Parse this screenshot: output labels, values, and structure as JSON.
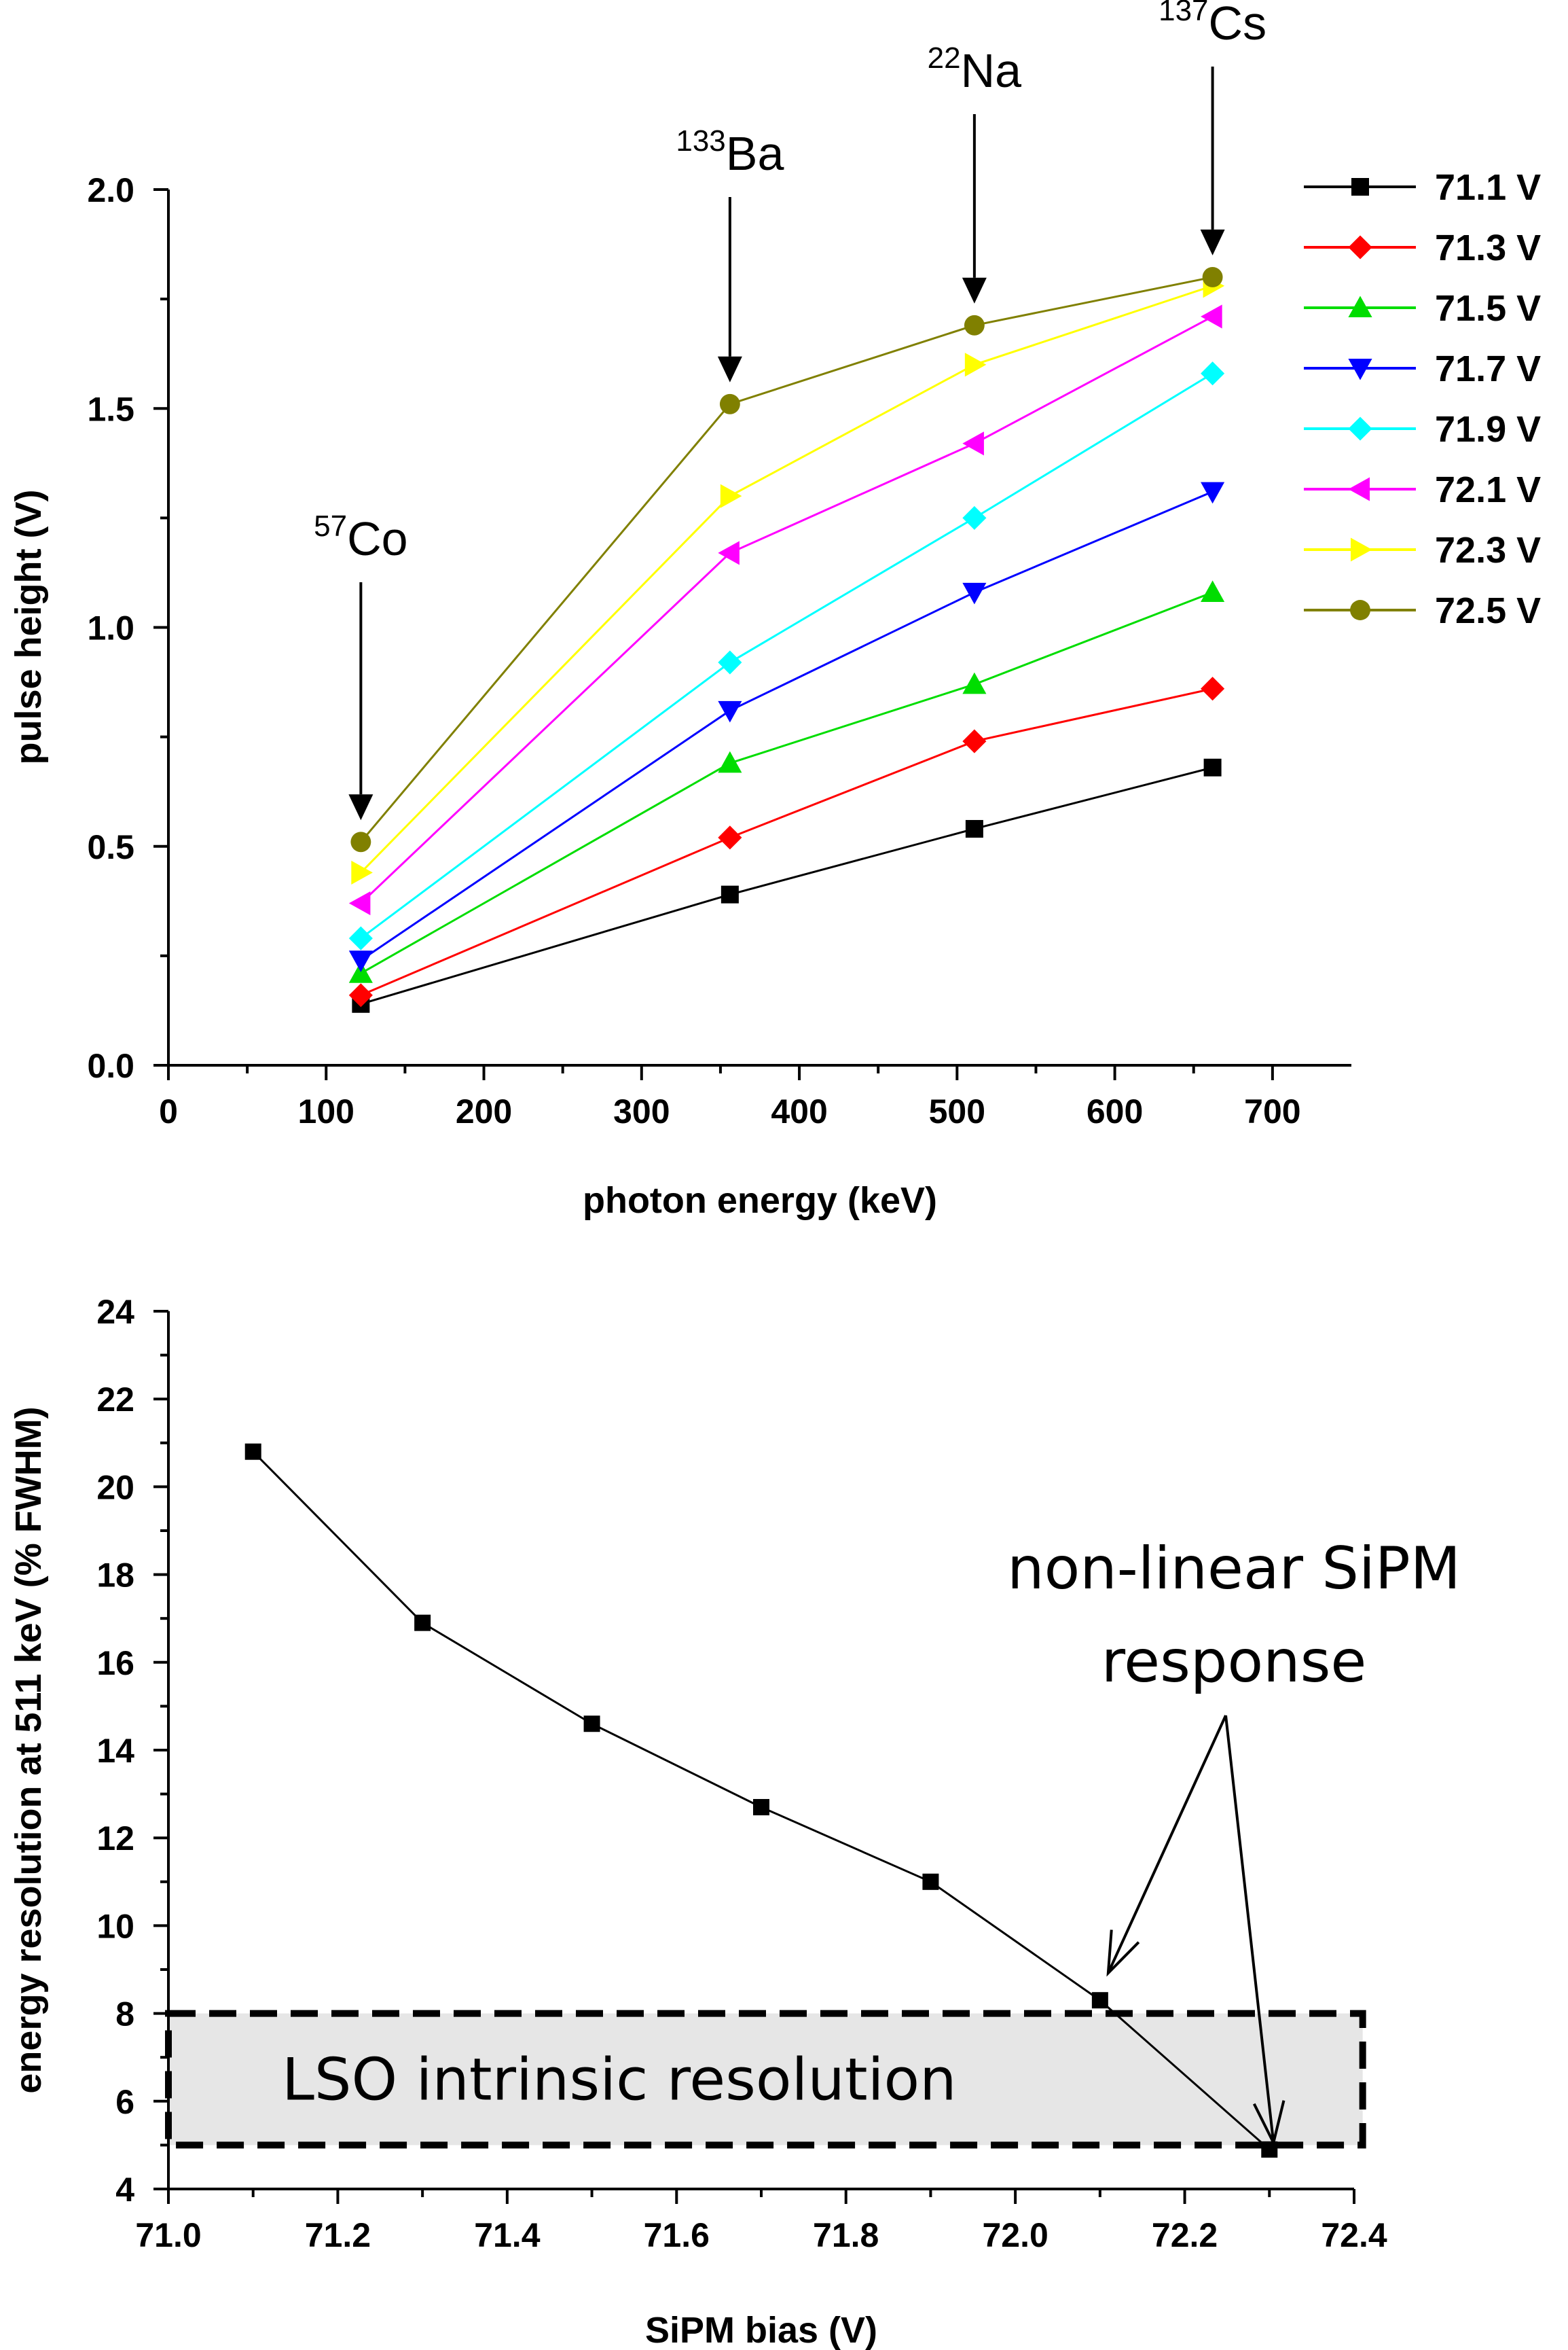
{
  "chart_data": [
    {
      "type": "line",
      "title": "",
      "xlabel": "photon energy (keV)",
      "ylabel": "pulse height (V)",
      "xlim": [
        0,
        750
      ],
      "ylim": [
        0,
        2.0
      ],
      "xticks": [
        "0",
        "100",
        "200",
        "300",
        "400",
        "500",
        "600",
        "700"
      ],
      "yticks": [
        "0.0",
        "0.5",
        "1.0",
        "1.5",
        "2.0"
      ],
      "x": [
        122,
        356,
        511,
        662
      ],
      "series": [
        {
          "name": "71.1 V",
          "color": "#000000",
          "marker": "square",
          "values": [
            0.14,
            0.39,
            0.54,
            0.68
          ]
        },
        {
          "name": "71.3 V",
          "color": "#ff0000",
          "marker": "diamond",
          "values": [
            0.16,
            0.52,
            0.74,
            0.86
          ]
        },
        {
          "name": "71.5 V",
          "color": "#00dd00",
          "marker": "triangle-up",
          "values": [
            0.21,
            0.69,
            0.87,
            1.08
          ]
        },
        {
          "name": "71.7 V",
          "color": "#0000ff",
          "marker": "triangle-down",
          "values": [
            0.24,
            0.81,
            1.08,
            1.31
          ]
        },
        {
          "name": "71.9 V",
          "color": "#00ffff",
          "marker": "diamond",
          "values": [
            0.29,
            0.92,
            1.25,
            1.58
          ]
        },
        {
          "name": "72.1 V",
          "color": "#ff00ff",
          "marker": "triangle-left",
          "values": [
            0.37,
            1.17,
            1.42,
            1.71
          ]
        },
        {
          "name": "72.3 V",
          "color": "#ffff00",
          "marker": "triangle-right",
          "values": [
            0.44,
            1.3,
            1.6,
            1.78
          ]
        },
        {
          "name": "72.5 V",
          "color": "#808000",
          "marker": "circle",
          "values": [
            0.51,
            1.51,
            1.69,
            1.8
          ]
        }
      ],
      "annotations": [
        {
          "mass": "57",
          "element": "Co",
          "x": 122,
          "y": 0.51
        },
        {
          "mass": "133",
          "element": "Ba",
          "x": 356,
          "y": 1.51
        },
        {
          "mass": "22",
          "element": "Na",
          "x": 511,
          "y": 1.69
        },
        {
          "mass": "137",
          "element": "Cs",
          "x": 662,
          "y": 1.8
        }
      ],
      "legend": "right"
    },
    {
      "type": "line",
      "title": "",
      "xlabel": "SiPM bias (V)",
      "ylabel": "energy resolution at 511 keV (% FWHM)",
      "xlim": [
        71.0,
        72.4
      ],
      "ylim": [
        4,
        24
      ],
      "xticks": [
        "71.0",
        "71.2",
        "71.4",
        "71.6",
        "71.8",
        "72.0",
        "72.2",
        "72.4"
      ],
      "yticks": [
        "4",
        "6",
        "8",
        "10",
        "12",
        "14",
        "16",
        "18",
        "20",
        "22",
        "24"
      ],
      "series": [
        {
          "name": "energy resolution",
          "color": "#000000",
          "marker": "square",
          "x": [
            71.1,
            71.3,
            71.5,
            71.7,
            71.9,
            72.1,
            72.3
          ],
          "values": [
            20.8,
            16.9,
            14.6,
            12.7,
            11.0,
            8.3,
            4.9
          ]
        }
      ],
      "shaded_band": {
        "y_from": 5,
        "y_to": 8,
        "label": "LSO intrinsic resolution"
      },
      "annotation": {
        "line1": "non-linear SiPM",
        "line2": "response"
      }
    }
  ]
}
